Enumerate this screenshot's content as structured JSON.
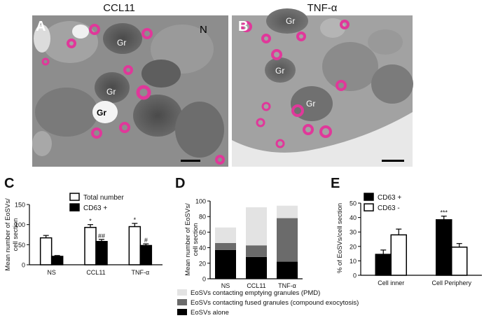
{
  "panels": {
    "A": {
      "letter": "A",
      "title": "CCL11",
      "labels": [
        "Gr",
        "Gr",
        "Gr",
        "N"
      ]
    },
    "B": {
      "letter": "B",
      "title": "TNF-α",
      "labels": [
        "Gr",
        "Gr",
        "Gr"
      ]
    }
  },
  "colors": {
    "eosv": "#e0389a",
    "micro_bg": "#8f8f8f",
    "panelB_bg": "#e6e6e6"
  },
  "chart_data": [
    {
      "panel": "C",
      "type": "bar",
      "categories": [
        "NS",
        "CCL11",
        "TNF-α"
      ],
      "ylabel": "Mean number of EoSVs/ cell section",
      "ylim": [
        0,
        150
      ],
      "yticks": [
        "0",
        "50",
        "100",
        "150"
      ],
      "series": [
        {
          "name": "Total number",
          "fill": "#ffffff",
          "values": [
            67,
            93,
            95
          ],
          "errors": [
            6,
            7,
            8
          ],
          "annotations": [
            "",
            "*",
            "*"
          ]
        },
        {
          "name": "CD63 +",
          "fill": "#000000",
          "values": [
            21,
            58,
            48
          ],
          "errors": [
            2,
            5,
            4
          ],
          "annotations": [
            "",
            "##",
            "#"
          ]
        }
      ],
      "legend_position": "top-right"
    },
    {
      "panel": "D",
      "type": "bar",
      "stacked": true,
      "categories": [
        "NS",
        "CCL11",
        "TNF-α"
      ],
      "ylabel": "Mean number of EoSVs/ cell section",
      "ylim": [
        0,
        100
      ],
      "yticks": [
        "0",
        "20",
        "40",
        "60",
        "80",
        "100"
      ],
      "series": [
        {
          "name": "EoSVs alone",
          "fill": "#000000",
          "values": [
            37,
            28,
            22
          ]
        },
        {
          "name": "EoSVs contacting fused granules (compound exocytosis)",
          "fill": "#6b6b6b",
          "values": [
            9,
            15,
            56
          ]
        },
        {
          "name": "EoSVs contacting emptying granules (PMD)",
          "fill": "#e3e3e3",
          "values": [
            20,
            49,
            16
          ]
        }
      ],
      "legend_position": "bottom"
    },
    {
      "panel": "E",
      "type": "bar",
      "categories": [
        "Cell inner",
        "Cell Periphery"
      ],
      "ylabel": "% of EoSVs/cell section",
      "ylim": [
        0,
        50
      ],
      "yticks": [
        "0",
        "10",
        "20",
        "30",
        "40",
        "50"
      ],
      "series": [
        {
          "name": "CD63 +",
          "fill": "#000000",
          "values": [
            14.5,
            38.5
          ],
          "errors": [
            3,
            2.5
          ],
          "annotations": [
            "",
            "***"
          ]
        },
        {
          "name": "CD63 -",
          "fill": "#ffffff",
          "values": [
            28,
            19.5
          ],
          "errors": [
            4,
            2.5
          ],
          "annotations": [
            "",
            ""
          ]
        }
      ],
      "legend_position": "top-left"
    }
  ]
}
